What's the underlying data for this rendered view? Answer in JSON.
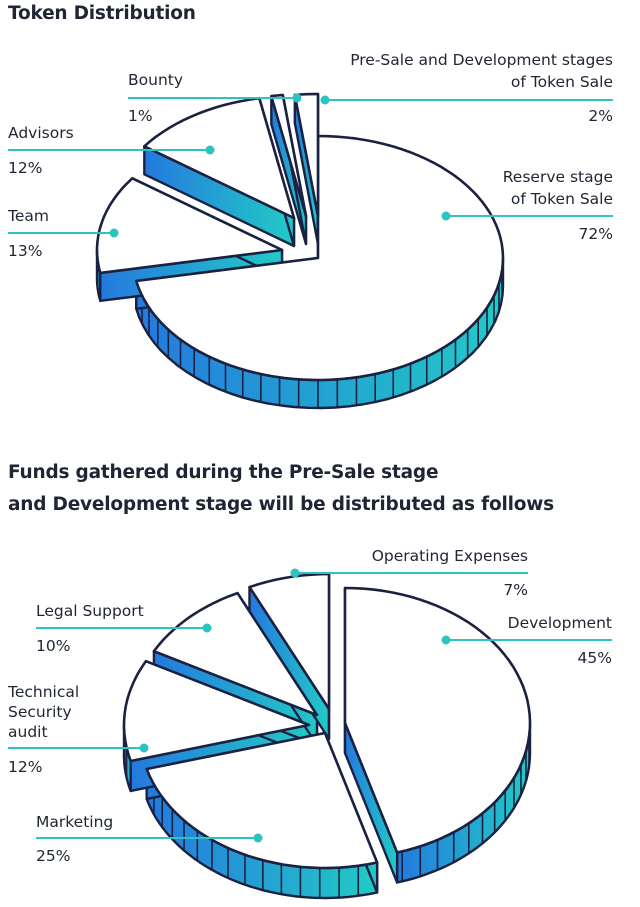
{
  "colors": {
    "text": "#1f2533",
    "outline": "#1b2140",
    "leader": "#2cc3c0",
    "gradient_start": "#2479de",
    "gradient_end": "#22cbc6",
    "face": "#ffffff"
  },
  "chart_data": [
    {
      "type": "pie",
      "style": "3d-exploded",
      "title": "Token Distribution",
      "unit": "%",
      "slices": [
        {
          "name": "Reserve stage of Token Sale",
          "label_lines": [
            "Reserve stage",
            "of Token Sale"
          ],
          "value": 72,
          "value_label": "72%"
        },
        {
          "name": "Team",
          "label_lines": [
            "Team"
          ],
          "value": 13,
          "value_label": "13%"
        },
        {
          "name": "Advisors",
          "label_lines": [
            "Advisors"
          ],
          "value": 12,
          "value_label": "12%"
        },
        {
          "name": "Bounty",
          "label_lines": [
            "Bounty"
          ],
          "value": 1,
          "value_label": "1%"
        },
        {
          "name": "Pre-Sale and Development stages of Token Sale",
          "label_lines": [
            "Pre-Sale and Development stages",
            "of Token Sale"
          ],
          "value": 2,
          "value_label": "2%"
        }
      ]
    },
    {
      "type": "pie",
      "style": "3d-exploded",
      "title": "Funds gathered during the Pre-Sale stage and Development stage will be distributed as follows",
      "title_lines": [
        "Funds gathered during the Pre-Sale stage",
        "and Development stage will be distributed as follows"
      ],
      "unit": "%",
      "slices": [
        {
          "name": "Development",
          "label_lines": [
            "Development"
          ],
          "value": 45,
          "value_label": "45%"
        },
        {
          "name": "Marketing",
          "label_lines": [
            "Marketing"
          ],
          "value": 25,
          "value_label": "25%"
        },
        {
          "name": "Technical Security audit",
          "label_lines": [
            "Technical",
            "Security",
            "audit"
          ],
          "value": 12,
          "value_label": "12%"
        },
        {
          "name": "Legal Support",
          "label_lines": [
            "Legal Support"
          ],
          "value": 10,
          "value_label": "10%"
        },
        {
          "name": "Operating Expenses",
          "label_lines": [
            "Operating Expenses"
          ],
          "value": 7,
          "value_label": "7%"
        }
      ]
    }
  ]
}
